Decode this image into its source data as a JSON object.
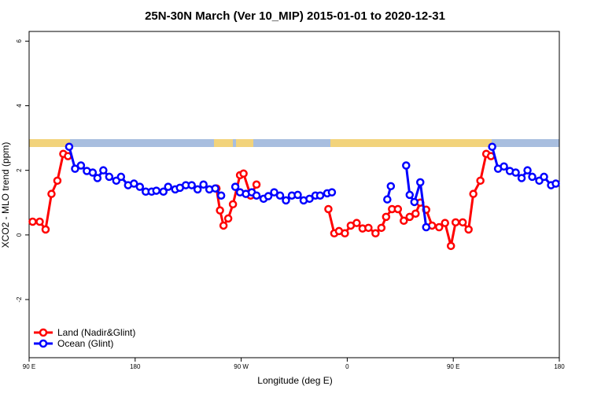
{
  "chart_data": {
    "type": "line",
    "title": "25N-30N March (Ver 10_MIP)   2015-01-01 to 2020-12-31",
    "x_label": "Longitude (deg E)",
    "y_label": "XCO2 - MLO trend (ppm)",
    "xlim": [
      90,
      540
    ],
    "ylim": [
      -3.8,
      6.3
    ],
    "xticks": [
      {
        "value": 90,
        "label": "90 E"
      },
      180,
      {
        "value": 270,
        "label": "90 W"
      },
      {
        "value": 360,
        "label": "0"
      },
      {
        "value": 450,
        "label": "90 E"
      },
      {
        "value": 540,
        "label": "180"
      }
    ],
    "yticks": [
      -2,
      0,
      2,
      4,
      6
    ],
    "legend": "bottom-left",
    "series": [
      {
        "name": "Land (Nadir&Glint)",
        "color": "#ff0000",
        "x": [
          93,
          99,
          104,
          109,
          114,
          119,
          123,
          null,
          249,
          252,
          255,
          259,
          263,
          269,
          272,
          278,
          283,
          null,
          344,
          349,
          353,
          358,
          363,
          368,
          373,
          378,
          384,
          389,
          393,
          398,
          403,
          408,
          413,
          418,
          422,
          427,
          432,
          438,
          443,
          448,
          452,
          458,
          463,
          467,
          473,
          478,
          482
        ],
        "values": [
          0.41,
          0.41,
          0.17,
          1.27,
          1.68,
          2.51,
          2.44,
          null,
          1.44,
          0.76,
          0.29,
          0.51,
          0.95,
          1.85,
          1.9,
          1.22,
          1.56,
          null,
          0.8,
          0.05,
          0.12,
          0.05,
          0.29,
          0.37,
          0.2,
          0.22,
          0.05,
          0.22,
          0.56,
          0.8,
          0.8,
          0.44,
          0.56,
          0.66,
          1.0,
          0.78,
          0.29,
          0.24,
          0.37,
          -0.34,
          0.39,
          0.39,
          0.17,
          1.27,
          1.68,
          2.51,
          2.44
        ]
      },
      {
        "name": "Ocean (Glint)",
        "color": "#0000ff",
        "x": [
          124,
          129,
          134,
          139,
          144,
          148,
          153,
          158,
          164,
          168,
          174,
          179,
          184,
          189,
          194,
          198,
          204,
          208,
          214,
          218,
          223,
          228,
          233,
          238,
          243,
          248,
          253,
          null,
          265,
          269,
          274,
          279,
          283,
          289,
          293,
          298,
          303,
          308,
          313,
          318,
          323,
          328,
          333,
          337,
          343,
          347,
          null,
          394,
          397,
          null,
          410,
          413,
          417,
          422,
          427,
          null,
          483,
          488,
          493,
          498,
          503,
          508,
          513,
          517,
          523,
          527,
          533,
          537
        ],
        "values": [
          2.73,
          2.05,
          2.15,
          1.98,
          1.93,
          1.76,
          2.0,
          1.8,
          1.68,
          1.8,
          1.54,
          1.59,
          1.49,
          1.34,
          1.34,
          1.37,
          1.34,
          1.49,
          1.41,
          1.46,
          1.54,
          1.54,
          1.41,
          1.56,
          1.41,
          1.44,
          1.22,
          null,
          1.49,
          1.32,
          1.27,
          1.32,
          1.22,
          1.12,
          1.2,
          1.32,
          1.22,
          1.07,
          1.22,
          1.24,
          1.07,
          1.12,
          1.22,
          1.22,
          1.29,
          1.32,
          null,
          1.1,
          1.51,
          null,
          2.15,
          1.24,
          1.02,
          1.63,
          0.24,
          null,
          2.73,
          2.05,
          2.12,
          1.98,
          1.93,
          1.76,
          2.0,
          1.8,
          1.68,
          1.8,
          1.54,
          1.59
        ]
      }
    ]
  }
}
